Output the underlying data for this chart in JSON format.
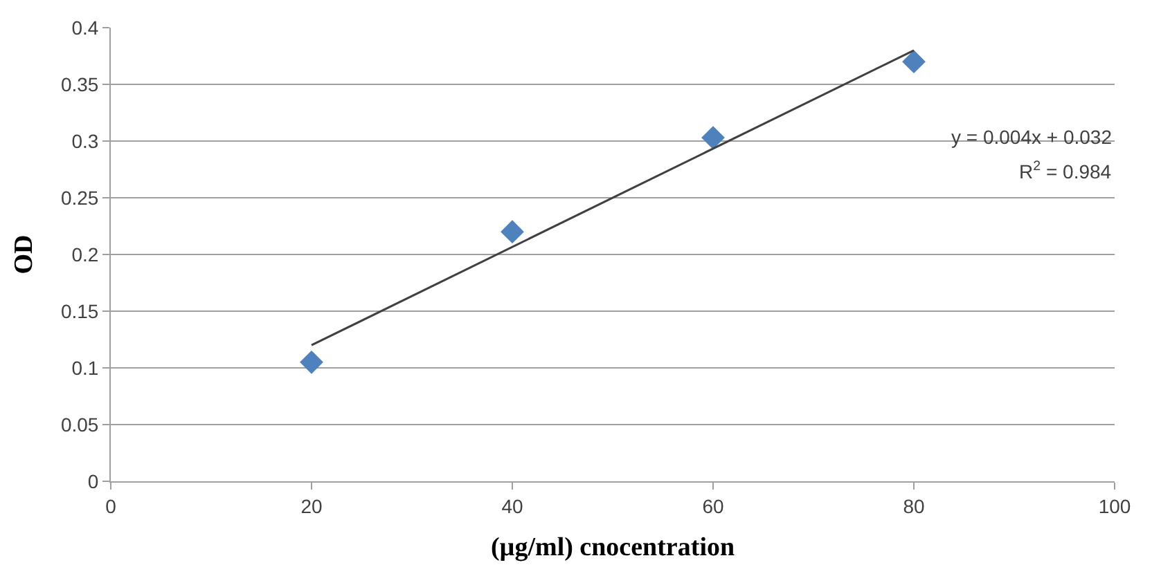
{
  "chart_data": {
    "type": "scatter",
    "xlabel": "(µg/ml) cnocentration",
    "ylabel": "OD",
    "series": [
      {
        "color": "#4f81bd",
        "x": [
          20,
          40,
          60,
          80
        ],
        "values": [
          0.105,
          0.22,
          0.303,
          0.37
        ],
        "marker": "diamond"
      },
      {
        "type": "line",
        "color": "#404040",
        "x": [
          20,
          80
        ],
        "values": [
          0.12,
          0.38
        ],
        "marker": "none"
      }
    ],
    "annotations": [
      "y = 0.004x + 0.032",
      "R$^{2}$ = 0.984"
    ],
    "xlim": [
      0,
      100
    ],
    "xticks": [
      0,
      20,
      40,
      60,
      80,
      100
    ],
    "ylim": [
      0,
      0.4
    ],
    "yticks": [
      0,
      0.05,
      0.1,
      0.15,
      0.2,
      0.25,
      0.3,
      0.35,
      0.4
    ],
    "grid": "y"
  }
}
